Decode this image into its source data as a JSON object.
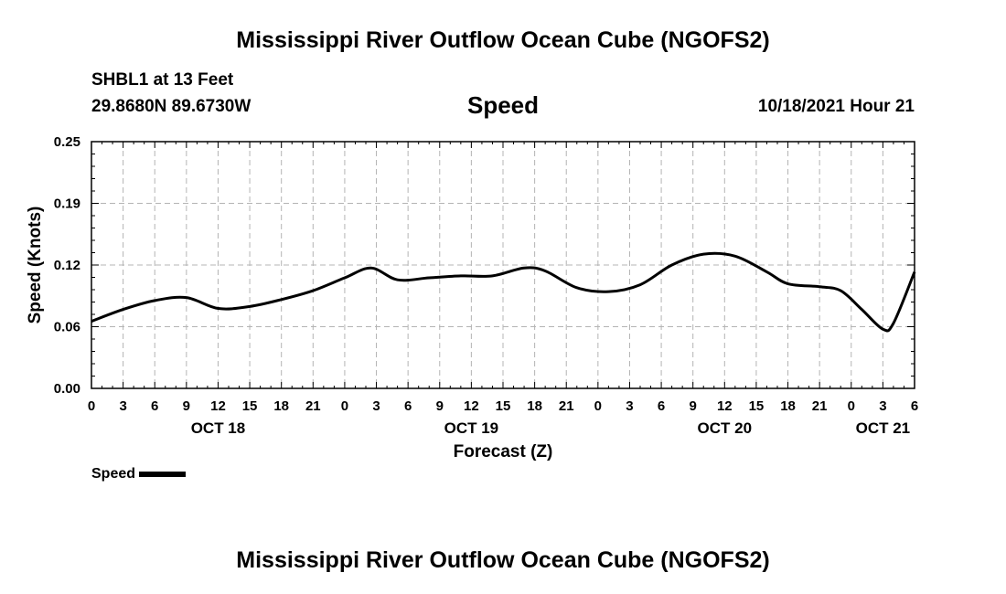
{
  "header": {
    "title": "Mississippi River Outflow Ocean Cube (NGOFS2)",
    "station": "SHBL1 at 13 Feet",
    "coords": "29.8680N  89.6730W",
    "plot_title": "Speed",
    "forecast_time": "10/18/2021 Hour 21"
  },
  "footer": {
    "title": "Mississippi River Outflow Ocean Cube (NGOFS2)"
  },
  "legend": {
    "label": "Speed",
    "color": "#000000"
  },
  "chart_data": {
    "type": "line",
    "title": "Speed",
    "xlabel": "Forecast (Z)",
    "ylabel": "Speed (Knots)",
    "xlim": [
      0,
      78
    ],
    "ylim": [
      0,
      0.25
    ],
    "grid": true,
    "yticks": [
      {
        "value": 0.0,
        "label": "0.00"
      },
      {
        "value": 0.0625,
        "label": "0.06"
      },
      {
        "value": 0.125,
        "label": "0.12"
      },
      {
        "value": 0.1875,
        "label": "0.19"
      },
      {
        "value": 0.25,
        "label": "0.25"
      }
    ],
    "xticks": [
      {
        "hour": 0,
        "label": "0"
      },
      {
        "hour": 3,
        "label": "3"
      },
      {
        "hour": 6,
        "label": "6"
      },
      {
        "hour": 9,
        "label": "9"
      },
      {
        "hour": 12,
        "label": "12"
      },
      {
        "hour": 15,
        "label": "15"
      },
      {
        "hour": 18,
        "label": "18"
      },
      {
        "hour": 21,
        "label": "21"
      },
      {
        "hour": 24,
        "label": "0"
      },
      {
        "hour": 27,
        "label": "3"
      },
      {
        "hour": 30,
        "label": "6"
      },
      {
        "hour": 33,
        "label": "9"
      },
      {
        "hour": 36,
        "label": "12"
      },
      {
        "hour": 39,
        "label": "15"
      },
      {
        "hour": 42,
        "label": "18"
      },
      {
        "hour": 45,
        "label": "21"
      },
      {
        "hour": 48,
        "label": "0"
      },
      {
        "hour": 51,
        "label": "3"
      },
      {
        "hour": 54,
        "label": "6"
      },
      {
        "hour": 57,
        "label": "9"
      },
      {
        "hour": 60,
        "label": "12"
      },
      {
        "hour": 63,
        "label": "15"
      },
      {
        "hour": 66,
        "label": "18"
      },
      {
        "hour": 69,
        "label": "21"
      },
      {
        "hour": 72,
        "label": "0"
      },
      {
        "hour": 75,
        "label": "3"
      },
      {
        "hour": 78,
        "label": "6"
      }
    ],
    "date_labels": [
      {
        "hour": 12,
        "label": "OCT 18"
      },
      {
        "hour": 36,
        "label": "OCT 19"
      },
      {
        "hour": 60,
        "label": "OCT 20"
      },
      {
        "hour": 75,
        "label": "OCT 21"
      }
    ],
    "series": [
      {
        "name": "Speed",
        "x": [
          0,
          3,
          6,
          9,
          12,
          15,
          18,
          21,
          24,
          26.5,
          29,
          32,
          35,
          38,
          41,
          43,
          46,
          49,
          52,
          55,
          58,
          61,
          64,
          66,
          69,
          71,
          73,
          75,
          76,
          78
        ],
        "y": [
          0.068,
          0.08,
          0.089,
          0.092,
          0.081,
          0.083,
          0.09,
          0.099,
          0.112,
          0.122,
          0.11,
          0.112,
          0.114,
          0.114,
          0.122,
          0.119,
          0.102,
          0.098,
          0.105,
          0.125,
          0.136,
          0.134,
          0.118,
          0.106,
          0.103,
          0.099,
          0.08,
          0.06,
          0.066,
          0.118
        ]
      }
    ]
  }
}
